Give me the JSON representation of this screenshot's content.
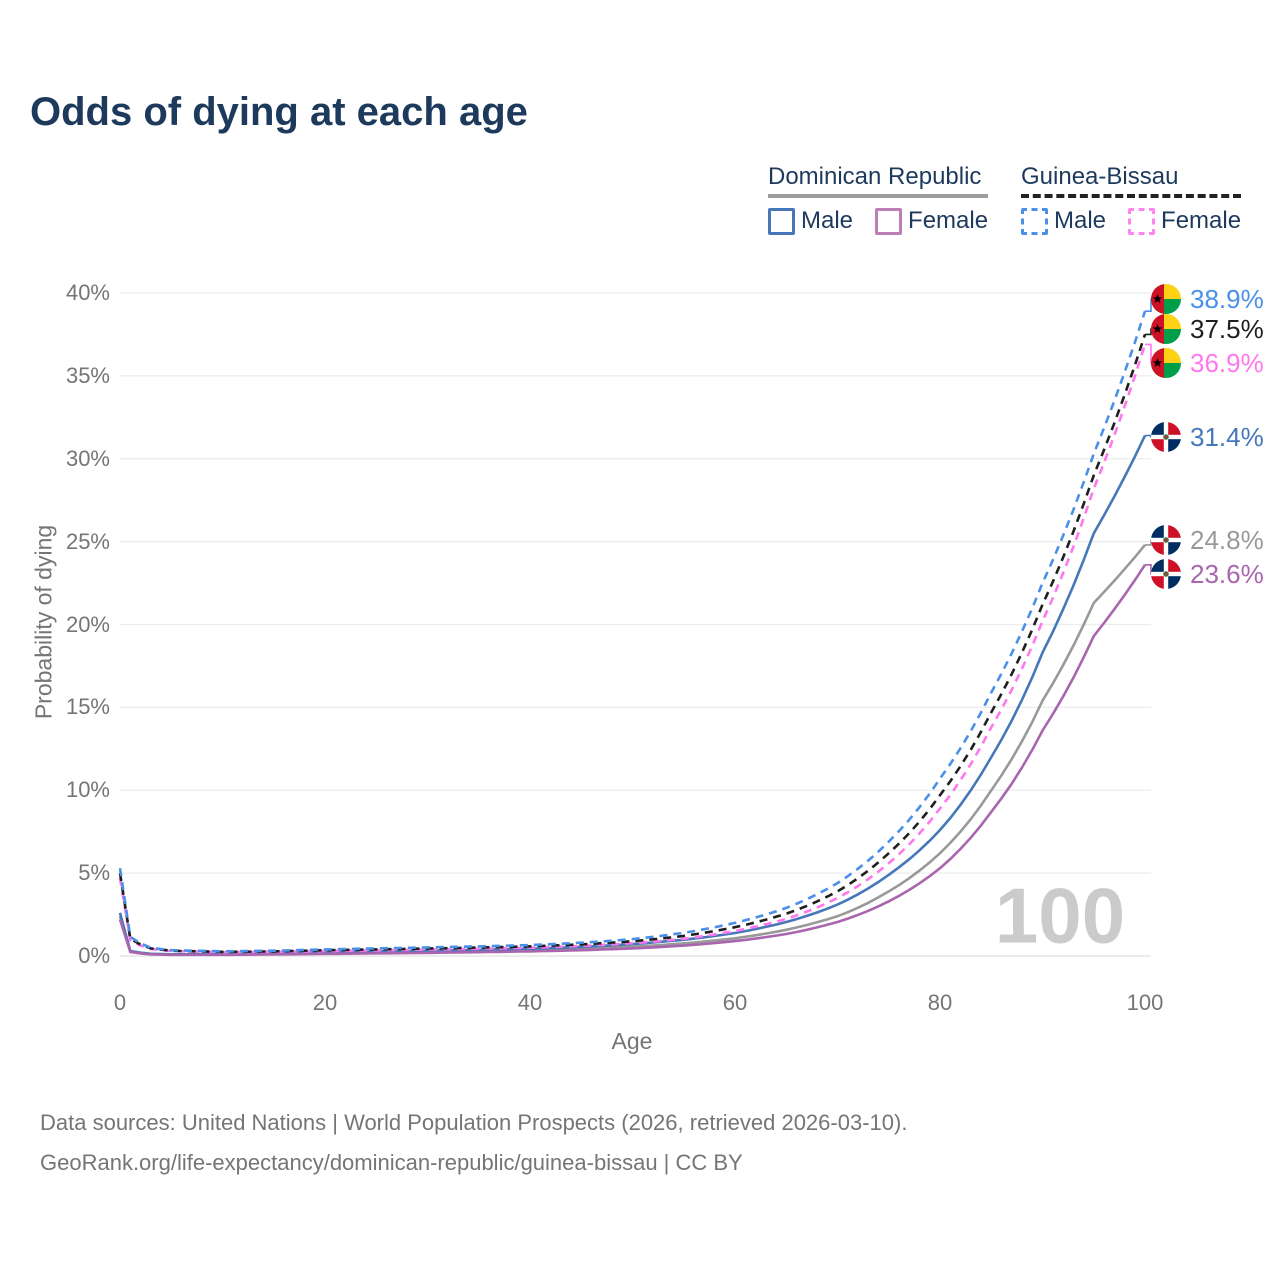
{
  "title": "Odds of dying at each age",
  "legend": {
    "dr": {
      "label": "Dominican Republic",
      "male": "Male",
      "female": "Female",
      "male_color": "#4678b9",
      "female_color": "#bd7fb8",
      "underline_color": "#9e9e9e"
    },
    "gb": {
      "label": "Guinea-Bissau",
      "male": "Male",
      "female": "Female",
      "male_color": "#4a90e8",
      "female_color": "#ff85ee",
      "underline_color": "#222222"
    }
  },
  "colors": {
    "title": "#1d3a5c",
    "axis_text": "#757575",
    "gridline": "#ececee",
    "baseline": "#e0e0e2",
    "watermark": "#cbcbcb"
  },
  "chart_data": {
    "type": "line",
    "title": "Odds of dying at each age",
    "xlabel": "Age",
    "ylabel": "Probability of dying",
    "xlim": [
      0,
      100
    ],
    "ylim": [
      0,
      40
    ],
    "x_ticks": [
      0,
      20,
      40,
      60,
      80,
      100
    ],
    "y_ticks": [
      0,
      5,
      10,
      15,
      20,
      25,
      30,
      35,
      40
    ],
    "y_tick_suffix": "%",
    "grid": "horizontal",
    "age_counter": "100",
    "legend_position": "top-right",
    "series": [
      {
        "name": "Dominican Republic Both sexes",
        "color": "#999999",
        "dash": false,
        "flag": "do",
        "end_value": 24.8,
        "end_label": "24.8%",
        "points": [
          [
            0,
            2.4
          ],
          [
            1,
            0.27
          ],
          [
            3,
            0.12
          ],
          [
            5,
            0.09
          ],
          [
            10,
            0.09
          ],
          [
            15,
            0.14
          ],
          [
            20,
            0.18
          ],
          [
            25,
            0.21
          ],
          [
            30,
            0.25
          ],
          [
            35,
            0.29
          ],
          [
            40,
            0.35
          ],
          [
            45,
            0.43
          ],
          [
            50,
            0.56
          ],
          [
            55,
            0.76
          ],
          [
            60,
            1.07
          ],
          [
            65,
            1.58
          ],
          [
            70,
            2.4
          ],
          [
            75,
            3.9
          ],
          [
            80,
            6.2
          ],
          [
            85,
            10.0
          ],
          [
            90,
            15.4
          ],
          [
            95,
            21.3
          ],
          [
            100,
            24.8
          ]
        ]
      },
      {
        "name": "Dominican Republic Male",
        "color": "#4678b9",
        "dash": false,
        "flag": "do",
        "end_value": 31.4,
        "end_label": "31.4%",
        "points": [
          [
            0,
            2.6
          ],
          [
            1,
            0.3
          ],
          [
            3,
            0.13
          ],
          [
            5,
            0.1
          ],
          [
            10,
            0.11
          ],
          [
            15,
            0.18
          ],
          [
            20,
            0.24
          ],
          [
            25,
            0.28
          ],
          [
            30,
            0.32
          ],
          [
            35,
            0.37
          ],
          [
            40,
            0.44
          ],
          [
            45,
            0.55
          ],
          [
            50,
            0.72
          ],
          [
            55,
            0.98
          ],
          [
            60,
            1.39
          ],
          [
            65,
            2.05
          ],
          [
            70,
            3.1
          ],
          [
            75,
            4.9
          ],
          [
            80,
            7.6
          ],
          [
            85,
            12.0
          ],
          [
            90,
            18.3
          ],
          [
            95,
            25.5
          ],
          [
            100,
            31.4
          ]
        ]
      },
      {
        "name": "Dominican Republic Female",
        "color": "#a965ae",
        "dash": false,
        "flag": "do",
        "end_value": 23.6,
        "end_label": "23.6%",
        "points": [
          [
            0,
            2.2
          ],
          [
            1,
            0.24
          ],
          [
            3,
            0.1
          ],
          [
            5,
            0.07
          ],
          [
            10,
            0.07
          ],
          [
            15,
            0.1
          ],
          [
            20,
            0.13
          ],
          [
            25,
            0.16
          ],
          [
            30,
            0.19
          ],
          [
            35,
            0.23
          ],
          [
            40,
            0.28
          ],
          [
            45,
            0.35
          ],
          [
            50,
            0.46
          ],
          [
            55,
            0.63
          ],
          [
            60,
            0.9
          ],
          [
            65,
            1.33
          ],
          [
            70,
            2.05
          ],
          [
            75,
            3.3
          ],
          [
            80,
            5.3
          ],
          [
            85,
            8.7
          ],
          [
            90,
            13.6
          ],
          [
            95,
            19.3
          ],
          [
            100,
            23.6
          ]
        ]
      },
      {
        "name": "Guinea-Bissau Female",
        "color": "#ff77ee",
        "dash": true,
        "flag": "gw",
        "end_value": 36.9,
        "end_label": "36.9%",
        "points": [
          [
            0,
            4.7
          ],
          [
            1,
            0.95
          ],
          [
            3,
            0.42
          ],
          [
            5,
            0.3
          ],
          [
            10,
            0.23
          ],
          [
            15,
            0.25
          ],
          [
            20,
            0.3
          ],
          [
            25,
            0.34
          ],
          [
            30,
            0.39
          ],
          [
            35,
            0.44
          ],
          [
            40,
            0.5
          ],
          [
            45,
            0.61
          ],
          [
            50,
            0.77
          ],
          [
            55,
            1.04
          ],
          [
            60,
            1.51
          ],
          [
            65,
            2.24
          ],
          [
            70,
            3.5
          ],
          [
            75,
            5.6
          ],
          [
            80,
            8.9
          ],
          [
            85,
            13.8
          ],
          [
            90,
            20.2
          ],
          [
            95,
            28.2
          ],
          [
            100,
            36.9
          ]
        ]
      },
      {
        "name": "Guinea-Bissau Both sexes",
        "color": "#1f1f1f",
        "dash": true,
        "flag": "gw",
        "end_value": 37.5,
        "end_label": "37.5%",
        "points": [
          [
            0,
            5.0
          ],
          [
            1,
            1.05
          ],
          [
            3,
            0.46
          ],
          [
            5,
            0.32
          ],
          [
            10,
            0.25
          ],
          [
            15,
            0.28
          ],
          [
            20,
            0.35
          ],
          [
            25,
            0.4
          ],
          [
            30,
            0.45
          ],
          [
            35,
            0.51
          ],
          [
            40,
            0.58
          ],
          [
            45,
            0.7
          ],
          [
            50,
            0.89
          ],
          [
            55,
            1.21
          ],
          [
            60,
            1.74
          ],
          [
            65,
            2.55
          ],
          [
            70,
            3.9
          ],
          [
            75,
            6.2
          ],
          [
            80,
            9.7
          ],
          [
            85,
            14.7
          ],
          [
            90,
            21.2
          ],
          [
            95,
            29.0
          ],
          [
            100,
            37.5
          ]
        ]
      },
      {
        "name": "Guinea-Bissau Male",
        "color": "#4a90e8",
        "dash": true,
        "flag": "gw",
        "end_value": 38.9,
        "end_label": "38.9%",
        "points": [
          [
            0,
            5.3
          ],
          [
            1,
            1.15
          ],
          [
            3,
            0.5
          ],
          [
            5,
            0.35
          ],
          [
            10,
            0.28
          ],
          [
            15,
            0.32
          ],
          [
            20,
            0.4
          ],
          [
            25,
            0.46
          ],
          [
            30,
            0.52
          ],
          [
            35,
            0.58
          ],
          [
            40,
            0.66
          ],
          [
            45,
            0.8
          ],
          [
            50,
            1.02
          ],
          [
            55,
            1.4
          ],
          [
            60,
            2.0
          ],
          [
            65,
            2.9
          ],
          [
            70,
            4.4
          ],
          [
            75,
            6.9
          ],
          [
            80,
            10.7
          ],
          [
            85,
            15.9
          ],
          [
            90,
            22.5
          ],
          [
            95,
            30.3
          ],
          [
            100,
            38.9
          ]
        ]
      }
    ]
  },
  "footer": {
    "line1": "Data sources: United Nations | World Population Prospects (2026, retrieved 2026-03-10).",
    "line2": "GeoRank.org/life-expectancy/dominican-republic/guinea-bissau | CC BY"
  }
}
